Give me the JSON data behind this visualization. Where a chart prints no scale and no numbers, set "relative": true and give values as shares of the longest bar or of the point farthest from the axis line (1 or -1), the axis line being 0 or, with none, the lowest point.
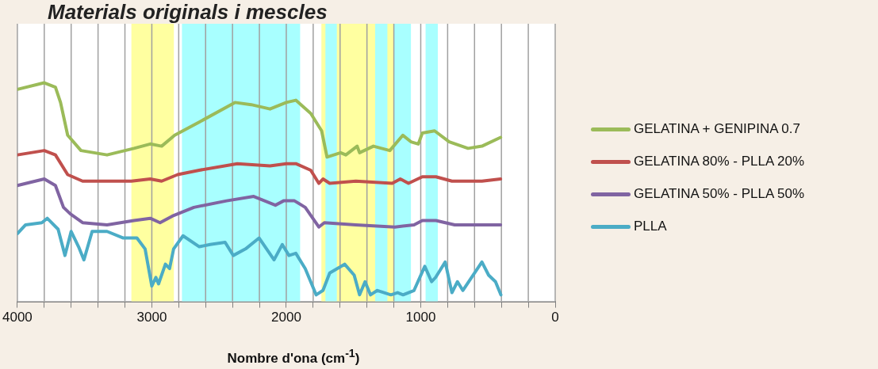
{
  "chart_data": {
    "type": "line",
    "title": "Materials originals i mescles",
    "xlabel": "Nombre d'ona (cm$^{-1}$)",
    "relative": true,
    "xlim": [
      4000,
      0
    ],
    "xticks": [
      4000,
      {
        "value": 3800,
        "label": null
      },
      {
        "value": 3600,
        "label": null
      },
      {
        "value": 3400,
        "label": null
      },
      {
        "value": 3200,
        "label": null
      },
      3000,
      {
        "value": 2800,
        "label": null
      },
      {
        "value": 2600,
        "label": null
      },
      {
        "value": 2400,
        "label": null
      },
      {
        "value": 2200,
        "label": null
      },
      2000,
      {
        "value": 1800,
        "label": null
      },
      {
        "value": 1600,
        "label": null
      },
      {
        "value": 1400,
        "label": null
      },
      {
        "value": 1200,
        "label": null
      },
      1000,
      {
        "value": 800,
        "label": null
      },
      {
        "value": 600,
        "label": null
      },
      {
        "value": 400,
        "label": null
      },
      {
        "value": 200,
        "label": null
      },
      0
    ],
    "grid": "x",
    "legend": "right",
    "marker": "none",
    "line_style": "solid",
    "bands": [
      {
        "axis": "x",
        "from": 3152,
        "to": 2836,
        "color": "#ffffa0"
      },
      {
        "axis": "x",
        "from": 1739,
        "to": 1200,
        "color": "#ffffa0"
      },
      {
        "axis": "x",
        "from": 2776,
        "to": 1897,
        "color": "#a8ffff"
      },
      {
        "axis": "x",
        "from": 1709,
        "to": 1624,
        "color": "#a8ffff"
      },
      {
        "axis": "x",
        "from": 1339,
        "to": 1248,
        "color": "#a8ffff"
      },
      {
        "axis": "x",
        "from": 1200,
        "to": 1073,
        "color": "#a8ffff"
      },
      {
        "axis": "x",
        "from": 964,
        "to": 873,
        "color": "#a8ffff"
      }
    ],
    "series": [
      {
        "name": "GELATINA + GENIPINA 0.7",
        "color": "#9bbb59",
        "x": [
          4000,
          3800,
          3717,
          3679,
          3626,
          3527,
          3333,
          3133,
          3012,
          2927,
          2830,
          2648,
          2382,
          2261,
          2121,
          2000,
          1929,
          1818,
          1737,
          1697,
          1596,
          1557,
          1473,
          1455,
          1352,
          1230,
          1133,
          1073,
          1018,
          988,
          897,
          788,
          648,
          545,
          406
        ],
        "values": [
          0.97,
          1.0,
          0.98,
          0.91,
          0.76,
          0.69,
          0.67,
          0.7,
          0.72,
          0.71,
          0.76,
          0.82,
          0.91,
          0.9,
          0.88,
          0.91,
          0.92,
          0.86,
          0.78,
          0.66,
          0.68,
          0.67,
          0.71,
          0.68,
          0.71,
          0.69,
          0.76,
          0.73,
          0.72,
          0.77,
          0.78,
          0.73,
          0.7,
          0.71,
          0.75
        ]
      },
      {
        "name": "GELATINA 80% - PLLA 20%",
        "color": "#c0504d",
        "x": [
          4000,
          3800,
          3717,
          3626,
          3515,
          3152,
          3012,
          2927,
          2808,
          2648,
          2364,
          2121,
          2000,
          1929,
          1818,
          1758,
          1727,
          1677,
          1483,
          1212,
          1152,
          1091,
          988,
          887,
          768,
          545,
          406
        ],
        "values": [
          0.67,
          0.69,
          0.67,
          0.58,
          0.55,
          0.55,
          0.56,
          0.55,
          0.58,
          0.6,
          0.63,
          0.62,
          0.63,
          0.63,
          0.6,
          0.54,
          0.56,
          0.54,
          0.55,
          0.54,
          0.56,
          0.54,
          0.57,
          0.57,
          0.55,
          0.55,
          0.56
        ]
      },
      {
        "name": "GELATINA 50% - PLLA 50%",
        "color": "#8064a2",
        "x": [
          4000,
          3800,
          3717,
          3657,
          3606,
          3515,
          3333,
          3133,
          3012,
          2939,
          2848,
          2687,
          2444,
          2242,
          2081,
          2020,
          1939,
          1859,
          1758,
          1717,
          1483,
          1192,
          1050,
          988,
          887,
          747,
          406
        ],
        "values": [
          0.53,
          0.56,
          0.53,
          0.43,
          0.4,
          0.36,
          0.35,
          0.37,
          0.38,
          0.36,
          0.39,
          0.43,
          0.46,
          0.48,
          0.44,
          0.46,
          0.46,
          0.43,
          0.34,
          0.36,
          0.35,
          0.34,
          0.35,
          0.37,
          0.37,
          0.35,
          0.35
        ]
      },
      {
        "name": "PLLA",
        "color": "#4bacc6",
        "x": [
          4000,
          3939,
          3818,
          3778,
          3697,
          3646,
          3600,
          3545,
          3505,
          3444,
          3333,
          3212,
          3111,
          3050,
          3000,
          2970,
          2950,
          2899,
          2868,
          2838,
          2768,
          2647,
          2566,
          2455,
          2394,
          2303,
          2202,
          2091,
          2030,
          1980,
          1929,
          1859,
          1778,
          1727,
          1677,
          1566,
          1495,
          1455,
          1414,
          1374,
          1323,
          1222,
          1172,
          1131,
          1050,
          970,
          919,
          889,
          818,
          768,
          727,
          687,
          545,
          495,
          444,
          404
        ],
        "values": [
          0.31,
          0.35,
          0.36,
          0.38,
          0.33,
          0.21,
          0.32,
          0.25,
          0.19,
          0.32,
          0.32,
          0.29,
          0.29,
          0.24,
          0.07,
          0.11,
          0.08,
          0.17,
          0.15,
          0.24,
          0.3,
          0.25,
          0.26,
          0.27,
          0.21,
          0.24,
          0.29,
          0.19,
          0.26,
          0.21,
          0.22,
          0.15,
          0.03,
          0.05,
          0.13,
          0.17,
          0.12,
          0.03,
          0.09,
          0.03,
          0.05,
          0.03,
          0.04,
          0.03,
          0.05,
          0.16,
          0.09,
          0.11,
          0.18,
          0.04,
          0.09,
          0.05,
          0.18,
          0.12,
          0.09,
          0.03
        ]
      }
    ]
  }
}
